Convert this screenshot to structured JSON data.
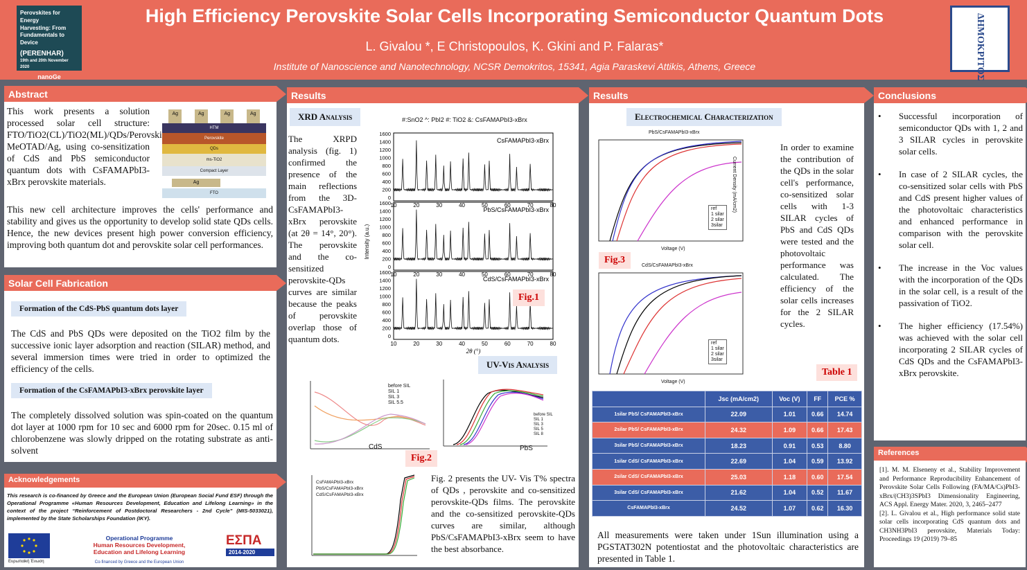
{
  "header": {
    "title": "High Efficiency Perovskite Solar Cells Incorporating Semiconductor Quantum Dots",
    "authors": "L. Givalou *, E Christopoulos, K. Gkini and P. Falaras*",
    "institute": "Institute of Nanoscience and Nanotechnology, NCSR Demokritos, 15341, Agia Paraskevi Attikis, Athens, Greece",
    "logo_left_lines": [
      "Perovskites for Energy",
      "Harvesting: From",
      "Fundamentals to Device",
      "(PERENHAR)",
      "19th and 20th November 2020",
      "nanoGe"
    ],
    "logo_right_text": "ΔΗΜΟΚΡΙΤΟΣ"
  },
  "abstract": {
    "heading": "Abstract",
    "p1": "This work presents a solution processed solar cell structure: FTO/TiO2(CL)/TiO2(ML)/QDs/Perovskite/Spiro-MeOTAD/Ag, using co-sensitization of CdS and PbS semiconductor quantum dots with CsFAMAPbI3-xBrx perovskite materials.",
    "p2": "This new cell architecture improves the cells' performance and stability and gives us the opportunity to develop solid state QDs cells. Hence, the new devices present high power conversion efficiency, improving both quantum dot and perovskite solar cell performances.",
    "stack": {
      "ag_top": [
        "Ag",
        "Ag",
        "Ag",
        "Ag"
      ],
      "layers": [
        "HTM",
        "Perovskite",
        "QDs",
        "ms-TiO2",
        "Compact Layer"
      ],
      "ag_bottom": "Ag",
      "fto": "FTO"
    }
  },
  "fabrication": {
    "heading": "Solar Cell Fabrication",
    "sub1": "Formation of the CdS-PbS quantum dots layer",
    "p1": "The CdS and PbS QDs were deposited on the TiO2 film by the successive ionic layer adsorption and reaction (SILAR) method, and several immersion times were tried in order to optimized the efficiency of the cells.",
    "sub2": "Formation of the CsFAMAPbI3-xBrx perovskite layer",
    "p2": "The completely dissolved solution was spin-coated on the quantum dot layer at 1000 rpm for 10 sec and 6000 rpm for 20sec. 0.15 ml of chlorobenzene was slowly dripped on the rotating substrate as anti-solvent"
  },
  "ack": {
    "heading": "Acknowledgements",
    "text": "This research is co-financed by Greece and the European Union (European Social Fund ESF) through the Operational Programme «Human Resources Development, Education and Lifelong Learning» in the context of the project “Reinforcement of Postdoctoral Researchers - 2nd Cycle” (MIS-5033021), implemented by the State Scholarships Foundation (IKY).",
    "eu": "Ευρωπαϊκή Ένωση",
    "op": [
      "Operational Programme",
      "Human Resources Development,",
      "Education and Lifelong Learning"
    ],
    "cofin": "Co-financed by Greece and the European Union",
    "espa": "ΕΣΠΑ",
    "espa_years": "2014-2020"
  },
  "results1": {
    "heading": "Results",
    "xrd_title": "XRD Analysis",
    "xrd_text": "The XRPD analysis (fig. 1) confirmed the presence of the main reflections from the 3D-CsFAMAPbI3-xBrx perovskite (at 2θ = 14°, 20°). The perovskite and the co-sensitized perovskite-QDs curves are similar because the peaks of perovskite overlap those of quantum dots.",
    "xrd_legend": "#:SnO2   ^: PbI2   #: TiO2   &: CsFAMAPbI3-xBrx",
    "xrd_panels": [
      "CsFAMAPbI3-xBrx",
      "PbS/CsFAMAPbI3-xBrx",
      "CdS/CsFAMAPbI3-xBrx"
    ],
    "xrd_y_ticks": [
      "1600",
      "1400",
      "1200",
      "1000",
      "800",
      "600",
      "400",
      "200",
      "0"
    ],
    "xrd_x_ticks": [
      "10",
      "20",
      "30",
      "40",
      "50",
      "60",
      "70",
      "80"
    ],
    "xrd_xlabel": "2θ (°)",
    "xrd_ylabel": "Intensity (a.u.)",
    "fig1": "Fig.1",
    "uv_title": "UV-Vis Analysis",
    "cds_label": "CdS",
    "pbs_label": "PbS",
    "fig2": "Fig.2",
    "cds_legend": [
      "before SIL",
      "SIL 1",
      "SIL 3",
      "SIL 5.5"
    ],
    "pbs_legend": [
      "before SIL",
      "SIL 1",
      "SIL 3",
      "SIL 5",
      "SIL 8"
    ],
    "bottom_legend": [
      "CsFAMAPbI3-xBrx",
      "PbS/CsFAMAPbI3-xBrx",
      "CdS/CsFAMAPbI3-xBrx"
    ],
    "uv_text": "Fig. 2 presents the UV- Vis T% spectra of QDs , perovskite and co-sensitized perovskite-QDs films. The perovskite and the co-sensitized perovskite-QDs curves are similar, although PbS/CsFAMAPbI3-xBrx seem to have the best absorbance."
  },
  "results2": {
    "heading": "Results",
    "ec_title": "Electrochemical Characterization",
    "ec_text": "In order to examine the contribution of the QDs in the solar cell's performance, co-sensitized solar cells with 1-3 SILAR cycles of PbS and CdS QDs were tested and the photovoltaic performance was calculated. The efficiency of the solar cells increases for the 2 SILAR cycles.",
    "jv1_title": "PbS/CsFAMAPbI3-xBrx",
    "jv2_title": "CdS/CsFAMAPbI3-xBrx",
    "jv_legend": [
      "ref",
      "1 silar",
      "2 silar",
      "3silar"
    ],
    "jv_xlabel": "Voltage (V)",
    "jv_ylabel": "Current Density (mA/cm2)",
    "fig3": "Fig.3",
    "table_label": "Table 1",
    "table_headers": [
      "",
      "Jsc (mA/cm2)",
      "Voc (V)",
      "FF",
      "PCE %"
    ],
    "table_rows": [
      [
        "1silar PbS/ CsFAMAPbI3-xBrx",
        "22.09",
        "1.01",
        "0.66",
        "14.74"
      ],
      [
        "2silar PbS/ CsFAMAPbI3-xBrx",
        "24.32",
        "1.09",
        "0.66",
        "17.43"
      ],
      [
        "3silar PbS/ CsFAMAPbI3-xBrx",
        "18.23",
        "0.91",
        "0.53",
        "8.80"
      ],
      [
        "1silar CdS/ CsFAMAPbI3-xBrx",
        "22.69",
        "1.04",
        "0.59",
        "13.92"
      ],
      [
        "2silar CdS/ CsFAMAPbI3-xBrx",
        "25.03",
        "1.18",
        "0.60",
        "17.54"
      ],
      [
        "3silar CdS/ CsFAMAPbI3-xBrx",
        "21.62",
        "1.04",
        "0.52",
        "11.67"
      ],
      [
        "CsFAMAPbI3-xBrx",
        "24.52",
        "1.07",
        "0.62",
        "16.30"
      ]
    ],
    "foot": "All measurements were taken under 1Sun illumination using a PGSTAT302N potentiostat and the photovoltaic characteristics are presented in Table 1."
  },
  "conclusions": {
    "heading": "Conclusions",
    "items": [
      "Successful incorporation of semiconductor QDs with 1, 2 and 3 SILAR cycles in perovskite solar cells.",
      "In case of 2 SILAR cycles, the co-sensitized solar cells with PbS and CdS present higher values of the photovoltaic characteristics and enhanced performance in comparison with the perovskite solar cell.",
      "The increase in the Voc values with the incorporation of the QDs in the solar cell, is a result of the passivation of TiO2.",
      "The higher efficiency (17.54%) was achieved with the solar cell incorporating 2 SILAR cycles of CdS QDs and the CsFAMAPbI3-xBrx perovskite."
    ]
  },
  "references": {
    "heading": "References",
    "items": [
      "[1]. M. M. Elseneny et al., Stability Improvement and Performance Reproducibility Enhancement of Perovskite Solar Cells Following (FA/MA/Cs)PbI3-xBrx/(CH3)3SPbI3 Dimensionality Engineering, ACS Appl. Energy Mater. 2020, 3, 2465–2477",
      "[2]. L. Givalou et al., High performance solid state solar cells incorporating CdS quantum dots and CH3NH3PbI3 perovskite, Materials Today: Proceedings 19 (2019) 79–85"
    ]
  },
  "colors": {
    "accent": "#e96b5a",
    "table_blue": "#3c5da7",
    "background": "#5f6470"
  }
}
